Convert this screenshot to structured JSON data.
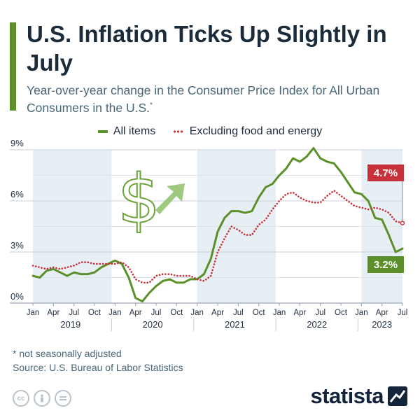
{
  "header": {
    "title": "U.S. Inflation Ticks Up Slightly in July",
    "subtitle": "Year-over-year change in the Consumer Price Index for All Urban Consumers in the U.S.",
    "subtitle_marker": "*"
  },
  "legend": {
    "all_items": "All items",
    "core": "Excluding food and energy"
  },
  "footer": {
    "footnote": "* not seasonally adjusted",
    "source": "Source: U.S. Bureau of Labor Statistics",
    "brand": "statista",
    "license_icons": [
      "cc-icon",
      "person-icon",
      "equals-icon"
    ]
  },
  "colors": {
    "all_items": "#5a8f29",
    "core": "#c8313a",
    "shade": "#e7eff5",
    "accent": "#5a8f29",
    "text": "#1c2b3a"
  },
  "chart_data": {
    "type": "line",
    "title": "U.S. Inflation Ticks Up Slightly in July",
    "ylim": [
      0,
      9
    ],
    "yticks": [
      0,
      3,
      6,
      9
    ],
    "ytick_labels": [
      "0%",
      "3%",
      "6%",
      "9%"
    ],
    "x_month_labels": [
      "Jan",
      "Apr",
      "Jul",
      "Oct",
      "Jan",
      "Apr",
      "Jul",
      "Oct",
      "Jan",
      "Apr",
      "Jul",
      "Oct",
      "Jan",
      "Apr",
      "Jul",
      "Oct",
      "Jan",
      "Apr",
      "Jul"
    ],
    "x_year_labels": [
      "2019",
      "2020",
      "2021",
      "2022",
      "2023"
    ],
    "x_start": "2019-01",
    "x_end": "2023-07",
    "series": [
      {
        "name": "All items",
        "style": "solid",
        "values": [
          1.6,
          1.5,
          1.9,
          2.0,
          1.8,
          1.6,
          1.8,
          1.7,
          1.7,
          1.8,
          2.1,
          2.3,
          2.5,
          2.3,
          1.5,
          0.3,
          0.1,
          0.6,
          1.0,
          1.3,
          1.4,
          1.2,
          1.2,
          1.4,
          1.4,
          1.7,
          2.6,
          4.2,
          5.0,
          5.4,
          5.4,
          5.3,
          5.4,
          6.2,
          6.8,
          7.0,
          7.5,
          7.9,
          8.5,
          8.3,
          8.6,
          9.1,
          8.5,
          8.3,
          8.2,
          7.7,
          7.1,
          6.5,
          6.4,
          6.0,
          5.0,
          4.9,
          4.0,
          3.0,
          3.2
        ]
      },
      {
        "name": "Excluding food and energy",
        "style": "dotted",
        "values": [
          2.2,
          2.1,
          2.0,
          2.1,
          2.0,
          2.1,
          2.2,
          2.4,
          2.4,
          2.3,
          2.3,
          2.3,
          2.3,
          2.4,
          2.1,
          1.4,
          1.2,
          1.2,
          1.6,
          1.7,
          1.7,
          1.6,
          1.6,
          1.6,
          1.4,
          1.3,
          1.6,
          3.0,
          3.8,
          4.5,
          4.3,
          4.0,
          4.0,
          4.6,
          4.9,
          5.5,
          6.0,
          6.4,
          6.5,
          6.2,
          6.0,
          5.9,
          5.9,
          6.3,
          6.6,
          6.3,
          6.0,
          5.7,
          5.6,
          5.5,
          5.6,
          5.5,
          5.3,
          4.8,
          4.7
        ]
      }
    ],
    "annotations": [
      {
        "series": "Excluding food and energy",
        "label": "4.7%",
        "color": "#c8313a"
      },
      {
        "series": "All items",
        "label": "3.2%",
        "color": "#5a8f29"
      }
    ],
    "decoration": "dollar-sign-with-up-arrow-icon",
    "grid": true,
    "legend_position": "top"
  }
}
